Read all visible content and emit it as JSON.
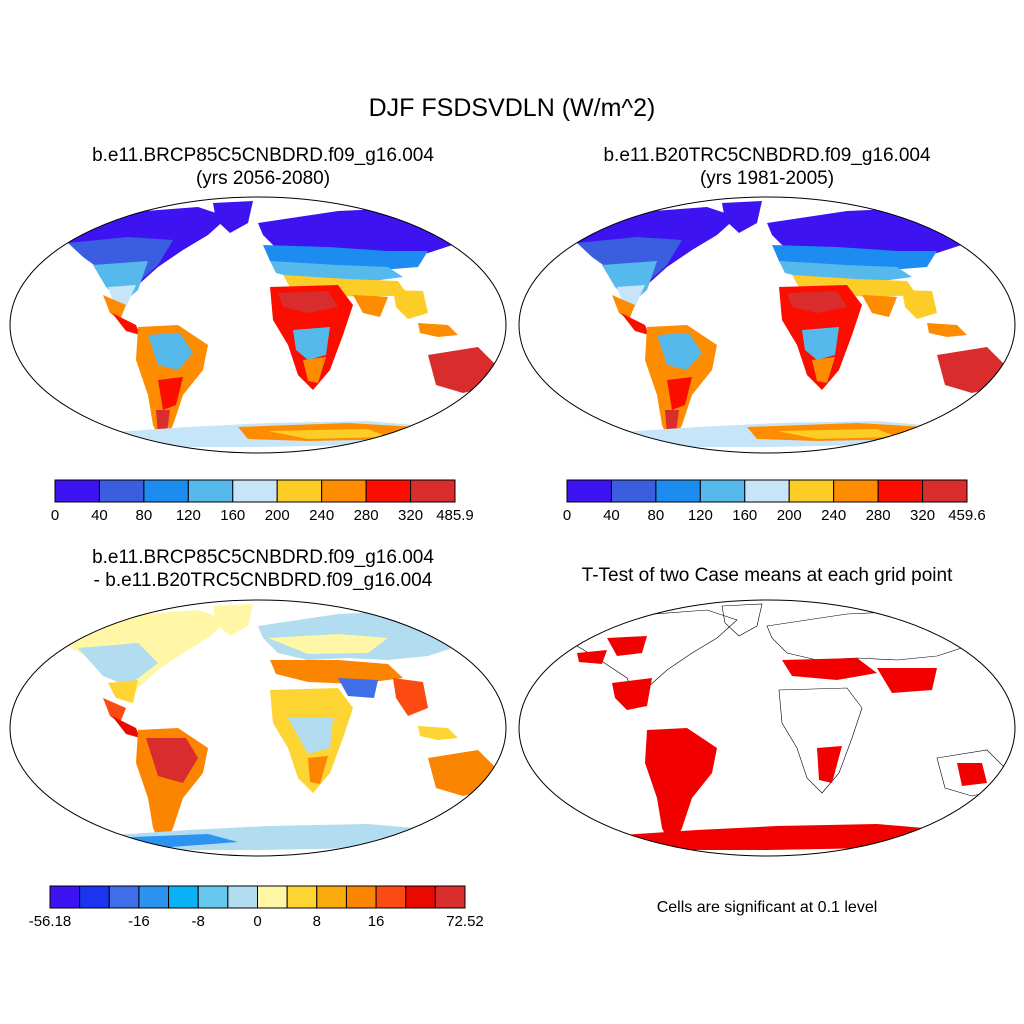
{
  "figure": {
    "title": "DJF FSDSVDLN (W/m^2)",
    "panels": [
      {
        "title_line1": "b.e11.BRCP85C5CNBDRD.f09_g16.004",
        "title_line2": "(yrs 2056-2080)",
        "colorbar": {
          "colors": [
            "#3d13f2",
            "#3b5ee0",
            "#1c8cf0",
            "#55b9ec",
            "#c7e5f8",
            "#fbcd26",
            "#fd8c00",
            "#fb0d00",
            "#d92c2c"
          ],
          "labels": [
            "0",
            "40",
            "80",
            "120",
            "160",
            "200",
            "240",
            "280",
            "320",
            "485.9"
          ]
        }
      },
      {
        "title_line1": "b.e11.B20TRC5CNBDRD.f09_g16.004",
        "title_line2": "(yrs 1981-2005)",
        "colorbar": {
          "colors": [
            "#3d13f2",
            "#3b5ee0",
            "#1c8cf0",
            "#55b9ec",
            "#c7e5f8",
            "#fbcd26",
            "#fd8c00",
            "#fb0d00",
            "#d92c2c"
          ],
          "labels": [
            "0",
            "40",
            "80",
            "120",
            "160",
            "200",
            "240",
            "280",
            "320",
            "459.6"
          ]
        }
      },
      {
        "title_line1": "b.e11.BRCP85C5CNBDRD.f09_g16.004",
        "title_line2": "- b.e11.B20TRC5CNBDRD.f09_g16.004",
        "colorbar": {
          "colors": [
            "#3d13f2",
            "#1a34f0",
            "#3f6fe8",
            "#2c93f0",
            "#08b2f5",
            "#67c8ee",
            "#b2dcef",
            "#fff7a6",
            "#fdd431",
            "#fbab0b",
            "#fb8500",
            "#fb4a12",
            "#e80a00",
            "#d92c2c"
          ],
          "labels": [
            "-56.18",
            "-16",
            "-8",
            "0",
            "8",
            "16",
            "72.52"
          ]
        }
      },
      {
        "title_line1": "T-Test of two Case means at each grid point",
        "note": "Cells are significant at 0.1 level"
      }
    ]
  }
}
